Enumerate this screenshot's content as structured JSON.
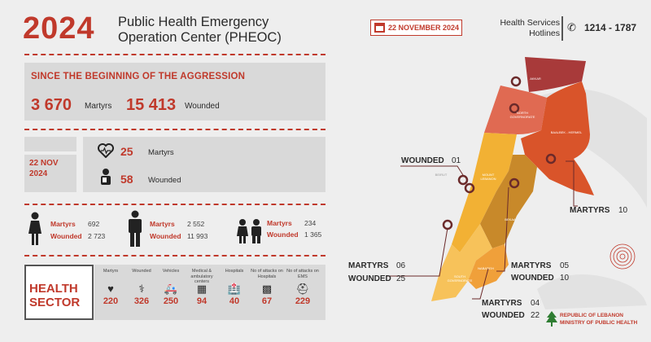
{
  "header": {
    "year": "2024",
    "title_line1": "Public Health Emergency",
    "title_line2": "Operation Center (PHEOC)",
    "date": "22 NOVEMBER 2024",
    "hotlines_line1": "Health Services",
    "hotlines_line2": "Hotlines",
    "hotline_number": "1214 - 1787"
  },
  "since": {
    "title": "SINCE THE BEGINNING OF THE AGGRESSION",
    "martyrs_value": "3 670",
    "martyrs_label": "Martyrs",
    "wounded_value": "15 413",
    "wounded_label": "Wounded"
  },
  "daily": {
    "date_line1": "22 NOV",
    "date_line2": "2024",
    "martyrs_value": "25",
    "martyrs_label": "Martyrs",
    "wounded_value": "58",
    "wounded_label": "Wounded"
  },
  "gender": {
    "women": {
      "martyrs_label": "Martyrs",
      "martyrs": "692",
      "wounded_label": "Wounded",
      "wounded": "2 723"
    },
    "men": {
      "martyrs_label": "Martyrs",
      "martyrs": "2 552",
      "wounded_label": "Wounded",
      "wounded": "11 993"
    },
    "children": {
      "martyrs_label": "Martyrs",
      "martyrs": "234",
      "wounded_label": "Wounded",
      "wounded": "1 365"
    }
  },
  "health_sector": {
    "title_line1": "HEALTH",
    "title_line2": "SECTOR",
    "items": [
      {
        "label": "Martyrs",
        "value": "220",
        "icon": "heart-icon"
      },
      {
        "label": "Wounded",
        "value": "326",
        "icon": "wounded-icon"
      },
      {
        "label": "Vehicles",
        "value": "250",
        "icon": "ambulance-icon"
      },
      {
        "label": "Medical & ambulatory centers",
        "value": "94",
        "icon": "clinic-icon"
      },
      {
        "label": "Hospitals",
        "value": "40",
        "icon": "hospital-icon"
      },
      {
        "label": "No of attacks on Hospitals",
        "value": "67",
        "icon": "hospital-attack-icon"
      },
      {
        "label": "No of attacks on EMS",
        "value": "229",
        "icon": "ems-icon"
      }
    ]
  },
  "map": {
    "governorates": {
      "akkar": "AKKAR",
      "north": "NORTH GOVERNORATE",
      "baalbek": "BAALBEK - HERMEL",
      "beirut": "BEIRUT",
      "mount": "MOUNT LEBANON",
      "bekaa": "BEKAA",
      "south": "SOUTH GOVERNORATE",
      "nabatieh": "NABATIEH"
    },
    "callouts": {
      "mount_wounded_label": "WOUNDED",
      "mount_wounded_value": "01",
      "baalbek_martyrs_label": "MARTYRS",
      "baalbek_martyrs_value": "10",
      "south_martyrs_label": "MARTYRS",
      "south_martyrs_value": "06",
      "south_wounded_label": "WOUNDED",
      "south_wounded_value": "25",
      "bekaa_martyrs_label": "MARTYRS",
      "bekaa_martyrs_value": "05",
      "bekaa_wounded_label": "WOUNDED",
      "bekaa_wounded_value": "10",
      "nabatieh_martyrs_label": "MARTYRS",
      "nabatieh_martyrs_value": "04",
      "nabatieh_wounded_label": "WOUNDED",
      "nabatieh_wounded_value": "22"
    },
    "colors": {
      "akkar": "#a83a3a",
      "north": "#e06a52",
      "baalbek": "#d9542a",
      "mount": "#f2b134",
      "bekaa": "#c8892a",
      "south": "#f7c25a",
      "nabatieh": "#f0a03a"
    }
  },
  "ministry": {
    "line1": "REPUBLIC OF LEBANON",
    "line2": "MINISTRY OF PUBLIC HEALTH"
  }
}
